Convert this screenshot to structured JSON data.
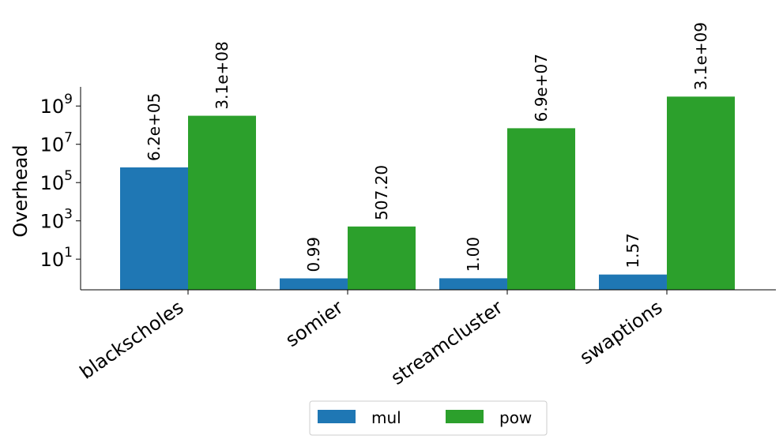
{
  "chart_data": {
    "type": "bar",
    "title": "",
    "xlabel": "",
    "ylabel": "Overhead",
    "yscale": "log",
    "ylim": [
      0.25,
      10000000000
    ],
    "yticks": [
      {
        "value": 10,
        "base": "10",
        "exp": "1"
      },
      {
        "value": 1000,
        "base": "10",
        "exp": "3"
      },
      {
        "value": 100000,
        "base": "10",
        "exp": "5"
      },
      {
        "value": 10000000,
        "base": "10",
        "exp": "7"
      },
      {
        "value": 1000000000,
        "base": "10",
        "exp": "9"
      }
    ],
    "categories": [
      "blackscholes",
      "somier",
      "streamcluster",
      "swaptions"
    ],
    "series": [
      {
        "name": "mul",
        "color": "#1f77b4",
        "values": [
          620000,
          0.99,
          1.0,
          1.57
        ],
        "labels": [
          "6.2e+05",
          "0.99",
          "1.00",
          "1.57"
        ]
      },
      {
        "name": "pow",
        "color": "#2ca02c",
        "values": [
          310000000,
          507.2,
          69000000,
          3100000000
        ],
        "labels": [
          "3.1e+08",
          "507.20",
          "6.9e+07",
          "3.1e+09"
        ]
      }
    ],
    "legend": {
      "position": "bottom-center",
      "columns": 2
    },
    "grid": false
  }
}
